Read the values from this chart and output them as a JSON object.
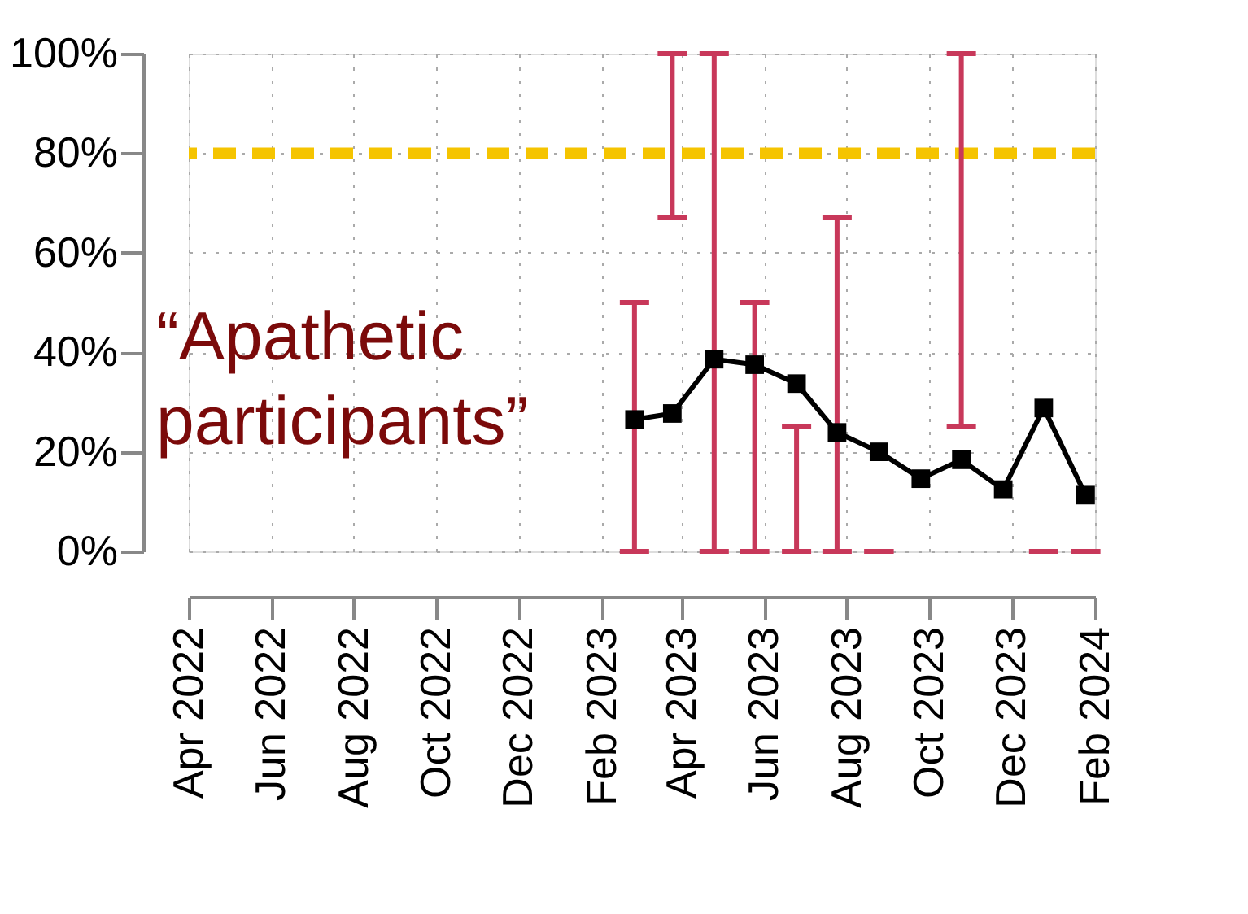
{
  "chart_data": {
    "type": "line",
    "x": [
      "2023-02-25",
      "2023-03-25",
      "2023-04-25",
      "2023-05-25",
      "2023-06-25",
      "2023-07-25",
      "2023-08-25",
      "2023-09-25",
      "2023-10-25",
      "2023-11-25",
      "2023-12-25",
      "2024-01-25"
    ],
    "series": [
      {
        "color": "#000000",
        "values": [
          26.5,
          27.7,
          38.6,
          37.5,
          33.7,
          23.9,
          20,
          14.6,
          18.4,
          12.4,
          28.8,
          11.3
        ],
        "errors": [
          [
            0,
            50
          ],
          [
            67,
            100
          ],
          [
            0,
            100
          ],
          [
            0,
            50
          ],
          [
            0,
            25
          ],
          [
            0,
            67
          ],
          [
            0,
            0
          ],
          null,
          [
            25,
            100
          ],
          null,
          [
            0,
            0
          ],
          [
            0,
            0
          ]
        ]
      }
    ],
    "marker": "square",
    "line_style": "solid",
    "xlim": [
      "2022-04-01",
      "2024-02-01"
    ],
    "xticks": [
      {
        "value": "2022-04",
        "label": "Apr 2022"
      },
      {
        "value": "2022-06",
        "label": "Jun 2022"
      },
      {
        "value": "2022-08",
        "label": "Aug 2022"
      },
      {
        "value": "2022-10",
        "label": "Oct 2022"
      },
      {
        "value": "2022-12",
        "label": "Dec 2022"
      },
      {
        "value": "2023-02",
        "label": "Feb 2023"
      },
      {
        "value": "2023-04",
        "label": "Apr 2023"
      },
      {
        "value": "2023-06",
        "label": "Jun 2023"
      },
      {
        "value": "2023-08",
        "label": "Aug 2023"
      },
      {
        "value": "2023-10",
        "label": "Oct 2023"
      },
      {
        "value": "2023-12",
        "label": "Dec 2023"
      },
      {
        "value": "2024-02",
        "label": "Feb 2024"
      }
    ],
    "ylim": [
      0,
      100
    ],
    "yticks": [
      {
        "value": 0,
        "label": "0%"
      },
      {
        "value": 20,
        "label": "20%"
      },
      {
        "value": 40,
        "label": "40%"
      },
      {
        "value": 60,
        "label": "60%"
      },
      {
        "value": 80,
        "label": "80%"
      },
      {
        "value": 100,
        "label": "100%"
      }
    ],
    "ref_lines": [
      {
        "axis": "y",
        "value": 80,
        "color": "#f5c400",
        "line_style": "dashed"
      }
    ],
    "annotations": [
      "“Apathetic participants”"
    ],
    "grid": true
  }
}
